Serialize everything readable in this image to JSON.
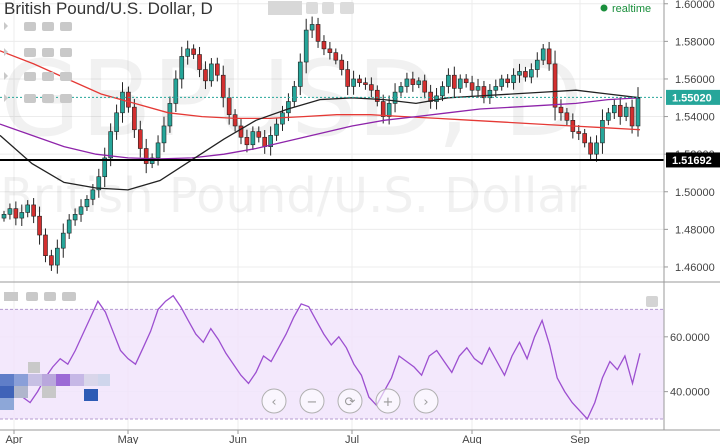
{
  "chart_data": [
    {
      "type": "candlestick",
      "title": "British Pound/U.S. Dollar, D",
      "watermark_symbol": "GBPUSD, D",
      "watermark_name": "British Pound/U.S. Dollar",
      "status": "realtime",
      "x_tick_labels": [
        "Apr",
        "May",
        "Jun",
        "Jul",
        "Aug",
        "Sep"
      ],
      "y_tick_labels": [
        "1.60000",
        "1.58000",
        "1.56000",
        "1.54000",
        "1.52000",
        "1.50000",
        "1.48000",
        "1.46000"
      ],
      "ylim": [
        1.452,
        1.602
      ],
      "last_price": {
        "value": 1.5502,
        "label": "1.55020"
      },
      "horizontal_line": {
        "value": 1.51692,
        "label": "1.51692"
      },
      "grid": true,
      "candles_close": [
        1.488,
        1.491,
        1.486,
        1.489,
        1.493,
        1.487,
        1.477,
        1.466,
        1.461,
        1.47,
        1.478,
        1.485,
        1.488,
        1.492,
        1.496,
        1.501,
        1.508,
        1.518,
        1.532,
        1.542,
        1.553,
        1.545,
        1.533,
        1.523,
        1.515,
        1.518,
        1.526,
        1.535,
        1.547,
        1.56,
        1.572,
        1.576,
        1.573,
        1.565,
        1.559,
        1.568,
        1.562,
        1.55,
        1.541,
        1.535,
        1.529,
        1.525,
        1.532,
        1.529,
        1.524,
        1.53,
        1.536,
        1.542,
        1.548,
        1.556,
        1.569,
        1.586,
        1.589,
        1.58,
        1.576,
        1.574,
        1.57,
        1.565,
        1.556,
        1.56,
        1.558,
        1.557,
        1.554,
        1.548,
        1.54,
        1.547,
        1.553,
        1.556,
        1.56,
        1.557,
        1.559,
        1.553,
        1.548,
        1.551,
        1.556,
        1.562,
        1.555,
        1.56,
        1.558,
        1.554,
        1.556,
        1.55,
        1.554,
        1.556,
        1.56,
        1.558,
        1.562,
        1.564,
        1.561,
        1.565,
        1.57,
        1.576,
        1.568,
        1.545,
        1.542,
        1.538,
        1.532,
        1.531,
        1.526,
        1.52,
        1.526,
        1.538,
        1.542,
        1.546,
        1.54,
        1.545,
        1.535,
        1.55
      ],
      "ma_fast": [
        1.53,
        1.515,
        1.505,
        1.502,
        1.501,
        1.506,
        1.517,
        1.528,
        1.538,
        1.544,
        1.549,
        1.55,
        1.549,
        1.547,
        1.55,
        1.551,
        1.552,
        1.553,
        1.554,
        1.552,
        1.55
      ],
      "ma_slow": [
        1.575,
        1.568,
        1.56,
        1.552,
        1.547,
        1.542,
        1.54,
        1.539,
        1.539,
        1.54,
        1.541,
        1.541,
        1.54,
        1.539,
        1.538,
        1.537,
        1.536,
        1.535,
        1.534,
        1.533
      ],
      "ma_mid": [
        1.536,
        1.53,
        1.524,
        1.52,
        1.518,
        1.5175,
        1.518,
        1.52,
        1.523,
        1.527,
        1.531,
        1.535,
        1.538,
        1.54,
        1.542,
        1.544,
        1.545,
        1.546,
        1.547,
        1.549,
        1.55
      ]
    },
    {
      "type": "line",
      "indicator": "oscillator",
      "y_tick_labels": [
        "60.0000",
        "40.0000"
      ],
      "ylim": [
        26,
        80
      ],
      "band": [
        30,
        70
      ],
      "values": [
        40,
        42,
        39,
        38,
        36,
        40,
        45,
        49,
        52,
        50,
        55,
        61,
        67,
        73,
        69,
        62,
        55,
        52,
        50,
        56,
        62,
        70,
        73,
        75,
        71,
        66,
        61,
        58,
        63,
        59,
        54,
        50,
        46,
        43,
        47,
        53,
        51,
        56,
        61,
        67,
        72,
        71,
        66,
        61,
        57,
        60,
        56,
        50,
        46,
        38,
        35,
        40,
        45,
        53,
        51,
        49,
        46,
        53,
        55,
        51,
        47,
        53,
        56,
        52,
        50,
        56,
        51,
        46,
        53,
        58,
        52,
        60,
        66,
        57,
        45,
        40,
        36,
        33,
        30,
        36,
        45,
        51,
        48,
        53,
        43,
        54
      ]
    }
  ],
  "toolbar": {
    "main_pane_icons": [
      "gear-icon",
      "gear-icon",
      "close-icon"
    ],
    "sub_pane_icons": [
      "eye-icon",
      "gear-icon",
      "close-icon"
    ]
  },
  "navigation": [
    "chevron-left-icon",
    "minus-icon",
    "reset-icon",
    "plus-icon",
    "chevron-right-icon"
  ],
  "colors": {
    "up": "#26a69a",
    "down": "#d32f2f",
    "ma_fast": "#222222",
    "ma_slow": "#e53935",
    "ma_mid": "#8e24aa",
    "oscillator": "#9c4fd0",
    "band_fill": "#f1e4fb",
    "last_price_tag": "#26a69a",
    "line_tag": "#000000"
  }
}
